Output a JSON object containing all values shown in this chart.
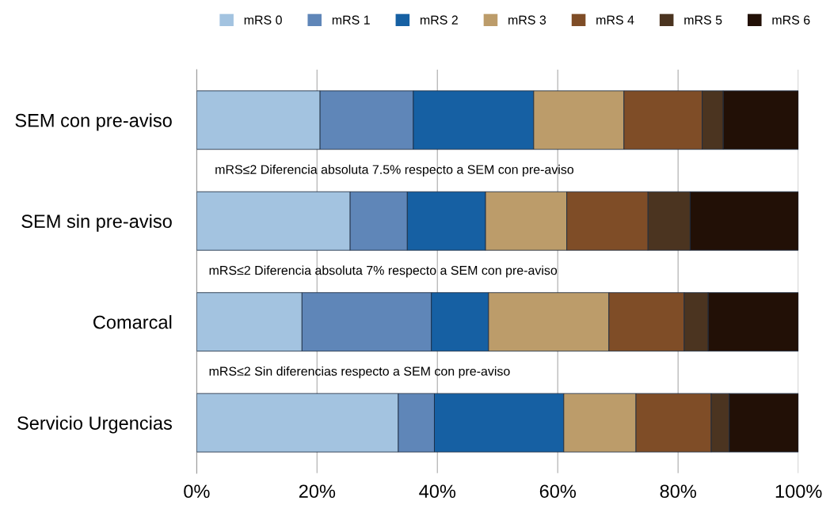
{
  "chart_data": {
    "type": "bar",
    "orientation": "horizontal",
    "stacked": true,
    "categories": [
      "SEM con pre-aviso",
      "SEM sin pre-aviso",
      "Comarcal",
      "Servicio Urgencias"
    ],
    "series": [
      {
        "name": "mRS 0",
        "color": "#a3c3e0",
        "values": [
          20.5,
          25.5,
          17.5,
          33.5
        ]
      },
      {
        "name": "mRS 1",
        "color": "#5f86b8",
        "values": [
          15.5,
          9.5,
          21.5,
          6
        ]
      },
      {
        "name": "mRS 2",
        "color": "#1660a3",
        "values": [
          20,
          13,
          9.5,
          21.5
        ]
      },
      {
        "name": "mRS 3",
        "color": "#bc9c6a",
        "values": [
          15,
          13.5,
          20,
          12
        ]
      },
      {
        "name": "mRS 4",
        "color": "#7f4d27",
        "values": [
          13,
          13.5,
          12.5,
          12.5
        ]
      },
      {
        "name": "mRS 5",
        "color": "#4b3420",
        "values": [
          3.5,
          7,
          4,
          3
        ]
      },
      {
        "name": "mRS 6",
        "color": "#221006",
        "values": [
          12.5,
          18,
          15,
          11.5
        ]
      }
    ],
    "xlim": [
      0,
      100
    ],
    "xticks": [
      {
        "value": 0,
        "label": "0%"
      },
      {
        "value": 20,
        "label": "20%"
      },
      {
        "value": 40,
        "label": "40%"
      },
      {
        "value": 60,
        "label": "60%"
      },
      {
        "value": 80,
        "label": "80%"
      },
      {
        "value": 100,
        "label": "100%"
      }
    ],
    "grid": "x",
    "legend": "top",
    "annotations": [
      "mRS≤2 Diferencia absoluta 7.5% respecto a SEM con pre-aviso",
      "mRS≤2 Diferencia absoluta 7% respecto a SEM con pre-aviso",
      "mRS≤2 Sin diferencias respecto a SEM con pre-aviso"
    ]
  }
}
